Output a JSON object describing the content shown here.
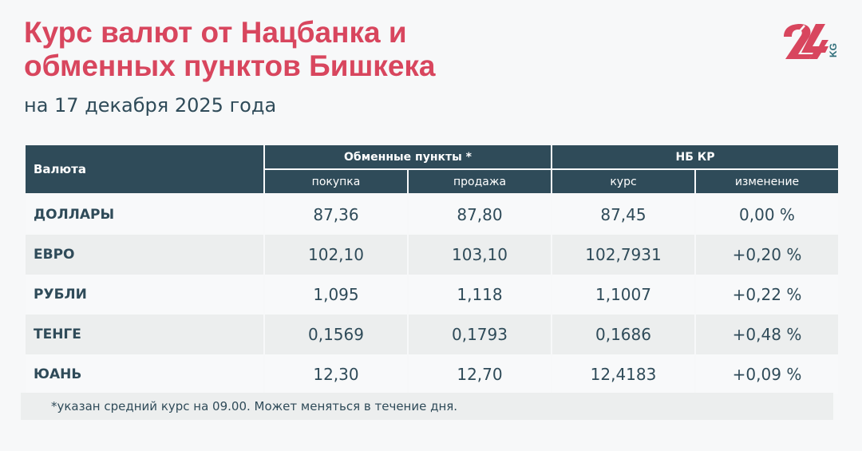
{
  "header": {
    "title_line1": "Курс валют от Нацбанка и",
    "title_line2": "обменных пунктов Бишкека",
    "subtitle": "на 17 декабря 2025 года",
    "logo_text": "24 KG"
  },
  "colors": {
    "accent": "#d8465e",
    "header_bg": "#2f4b59"
  },
  "table": {
    "col_currency": "Валюта",
    "group_exchange": "Обменные пункты *",
    "group_nb": "НБ КР",
    "col_buy": "покупка",
    "col_sell": "продажа",
    "col_rate": "курс",
    "col_change": "изменение",
    "rows": [
      {
        "name": "ДОЛЛАРЫ",
        "buy": "87,36",
        "sell": "87,80",
        "rate": "87,45",
        "change": "0,00 %"
      },
      {
        "name": "ЕВРО",
        "buy": "102,10",
        "sell": "103,10",
        "rate": "102,7931",
        "change": "+0,20 %"
      },
      {
        "name": "РУБЛИ",
        "buy": "1,095",
        "sell": "1,118",
        "rate": "1,1007",
        "change": "+0,22 %"
      },
      {
        "name": "ТЕНГЕ",
        "buy": "0,1569",
        "sell": "0,1793",
        "rate": "0,1686",
        "change": "+0,48 %"
      },
      {
        "name": "ЮАНЬ",
        "buy": "12,30",
        "sell": "12,70",
        "rate": "12,4183",
        "change": "+0,09 %"
      }
    ]
  },
  "footer": {
    "note": "*указан средний курс на 09.00. Может меняться в течение дня."
  }
}
